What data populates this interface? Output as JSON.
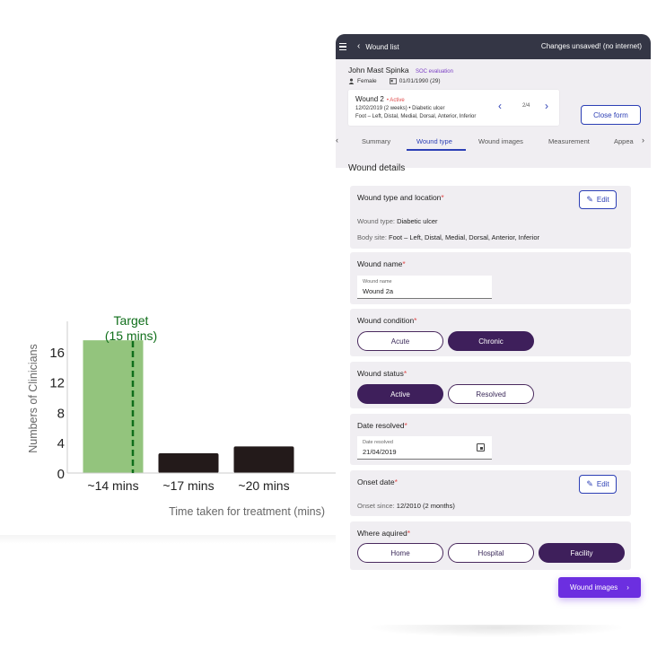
{
  "chart_data": {
    "type": "bar",
    "categories": [
      "~14 mins",
      "~17 mins",
      "~20 mins"
    ],
    "values": [
      17.5,
      2.6,
      3.5
    ],
    "xlabel": "Time taken for treatment (mins)",
    "ylabel": "Numbers of Clinicians",
    "yticks": [
      0,
      4,
      8,
      12,
      16
    ],
    "ylim": [
      0,
      20
    ],
    "grid": false,
    "target": {
      "label_line1": "Target",
      "label_line2": "(15 mins)",
      "category": "~14 mins",
      "color": "#0f6e1a"
    },
    "colors": {
      "highlight": "#93c47d",
      "default": "#231a1a"
    }
  },
  "app": {
    "topbar": {
      "back_label": "Wound list",
      "status": "Changes unsaved! (no internet)"
    },
    "patient": {
      "name": "John Mast Spinka",
      "badge": "SOC evaluation",
      "gender": "Female",
      "dob": "01/01/1990 (29)"
    },
    "wound_card": {
      "title": "Wound 2",
      "status": "• Active",
      "line2": "12/02/2019 (2 weeks) • Diabetic ulcer",
      "line3": "Foot – Left, Distal, Medial, Dorsal, Anterior, Inferior",
      "count": "2/4"
    },
    "close_form": "Close form",
    "tabs": [
      "Summary",
      "Wound type",
      "Wound images",
      "Measurement",
      "Appea"
    ],
    "active_tab": "Wound type",
    "details_title": "Wound details",
    "type_location": {
      "title": "Wound type and location",
      "edit": "Edit",
      "wound_type_label": "Wound type:",
      "wound_type_value": "Diabetic ulcer",
      "body_site_label": "Body site:",
      "body_site_value": "Foot – Left, Distal, Medial, Dorsal, Anterior, Inferior"
    },
    "wound_name": {
      "title": "Wound name",
      "field_label": "Wound name",
      "value": "Wound 2a"
    },
    "condition": {
      "title": "Wound condition",
      "options": [
        "Acute",
        "Chronic"
      ],
      "selected": "Chronic"
    },
    "status": {
      "title": "Wound status",
      "options": [
        "Active",
        "Resolved"
      ],
      "selected": "Active"
    },
    "date_resolved": {
      "title": "Date resolved",
      "field_label": "Date resolved",
      "value": "21/04/2019"
    },
    "onset": {
      "title": "Onset date",
      "edit": "Edit",
      "label": "Onset since:",
      "value": "12/2010 (2 months)"
    },
    "acquired": {
      "title": "Where aquired",
      "options": [
        "Home",
        "Hospital",
        "Facility"
      ],
      "selected": "Facility"
    },
    "next_button": "Wound images",
    "colors": {
      "primary": "#2c3fb5",
      "selected_pill": "#3e1f5b",
      "cta": "#6c2fe0",
      "topbar": "#343645"
    }
  }
}
